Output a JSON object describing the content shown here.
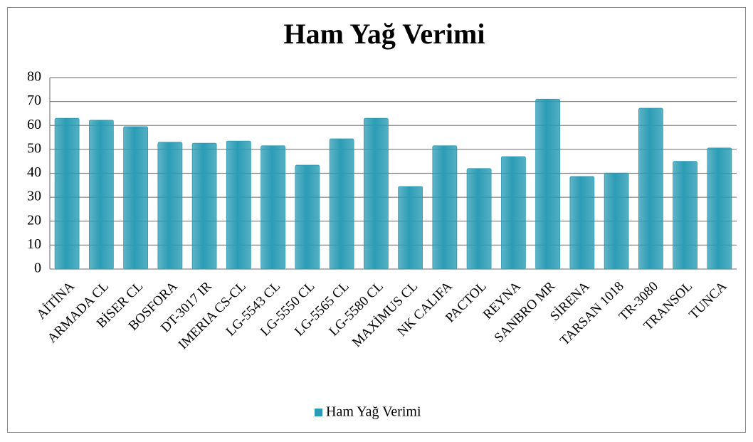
{
  "chart_data": {
    "type": "bar",
    "title": "Ham Yağ Verimi",
    "categories": [
      "AİTİNA",
      "ARMADA CL",
      "BİSER CL",
      "BOSFORA",
      "DT-3017 IR",
      "IMERIA CS-CL",
      "LG-5543 CL",
      "LG-5550 CL",
      "LG-5565 CL",
      "LG-5580 CL",
      "MAXİMUS CL",
      "NK CALIFA",
      "PACTOL",
      "REYNA",
      "SANBRO MR",
      "SİRENA",
      "TARSAN 1018",
      "TR-3080",
      "TRANSOL",
      "TUNCA"
    ],
    "series": [
      {
        "name": "Ham Yağ Verimi",
        "color": "#2b9cb5",
        "values": [
          63,
          62.2,
          59.5,
          53,
          52.6,
          53.5,
          51.5,
          43.4,
          54.4,
          63,
          34.5,
          51.5,
          42,
          47,
          71,
          38.7,
          40.1,
          67.2,
          45,
          50.6
        ]
      }
    ],
    "ylim": [
      0,
      80
    ],
    "yticks": [
      0,
      10,
      20,
      30,
      40,
      50,
      60,
      70,
      80
    ],
    "grid": true,
    "legend": "bottom"
  }
}
